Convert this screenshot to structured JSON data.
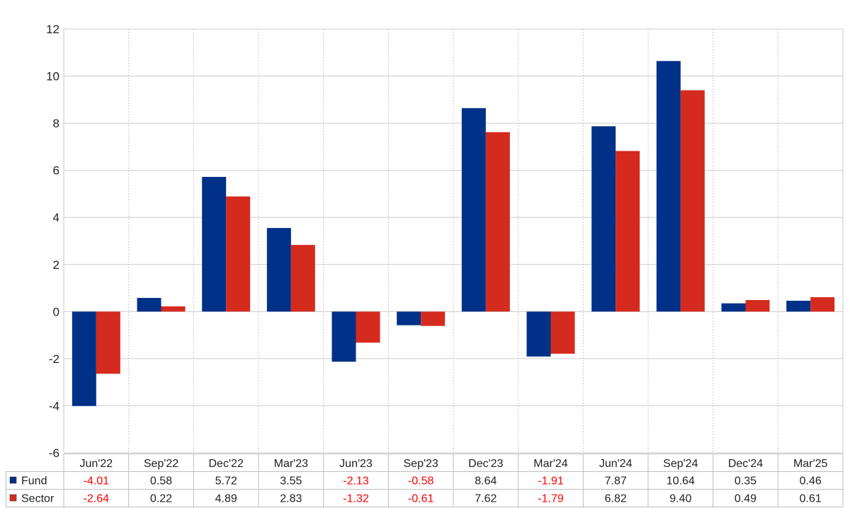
{
  "chart_data": {
    "type": "bar",
    "categories": [
      "Jun'22",
      "Sep'22",
      "Dec'22",
      "Mar'23",
      "Jun'23",
      "Sep'23",
      "Dec'23",
      "Mar'24",
      "Jun'24",
      "Sep'24",
      "Dec'24",
      "Mar'25"
    ],
    "series": [
      {
        "name": "Fund",
        "color": "#003189",
        "values": [
          -4.01,
          0.58,
          5.72,
          3.55,
          -2.13,
          -0.58,
          8.64,
          -1.91,
          7.87,
          10.64,
          0.35,
          0.46
        ],
        "labels": [
          "-4.01",
          "0.58",
          "5.72",
          "3.55",
          "-2.13",
          "-0.58",
          "8.64",
          "-1.91",
          "7.87",
          "10.64",
          "0.35",
          "0.46"
        ]
      },
      {
        "name": "Sector",
        "color": "#d52b1e",
        "values": [
          -2.64,
          0.22,
          4.89,
          2.83,
          -1.32,
          -0.61,
          7.62,
          -1.79,
          6.82,
          9.4,
          0.49,
          0.61
        ],
        "labels": [
          "-2.64",
          "0.22",
          "4.89",
          "2.83",
          "-1.32",
          "-0.61",
          "7.62",
          "-1.79",
          "6.82",
          "9.40",
          "0.49",
          "0.61"
        ]
      }
    ],
    "yticks": [
      "12",
      "10",
      "8",
      "6",
      "4",
      "2",
      "0",
      "-2",
      "-4",
      "-6"
    ],
    "ylim": [
      -6,
      12
    ],
    "grid": true,
    "legend": "data-table",
    "negative_value_color": "#ff0000",
    "positive_value_color": "#222222",
    "title": "",
    "xlabel": "",
    "ylabel": ""
  }
}
